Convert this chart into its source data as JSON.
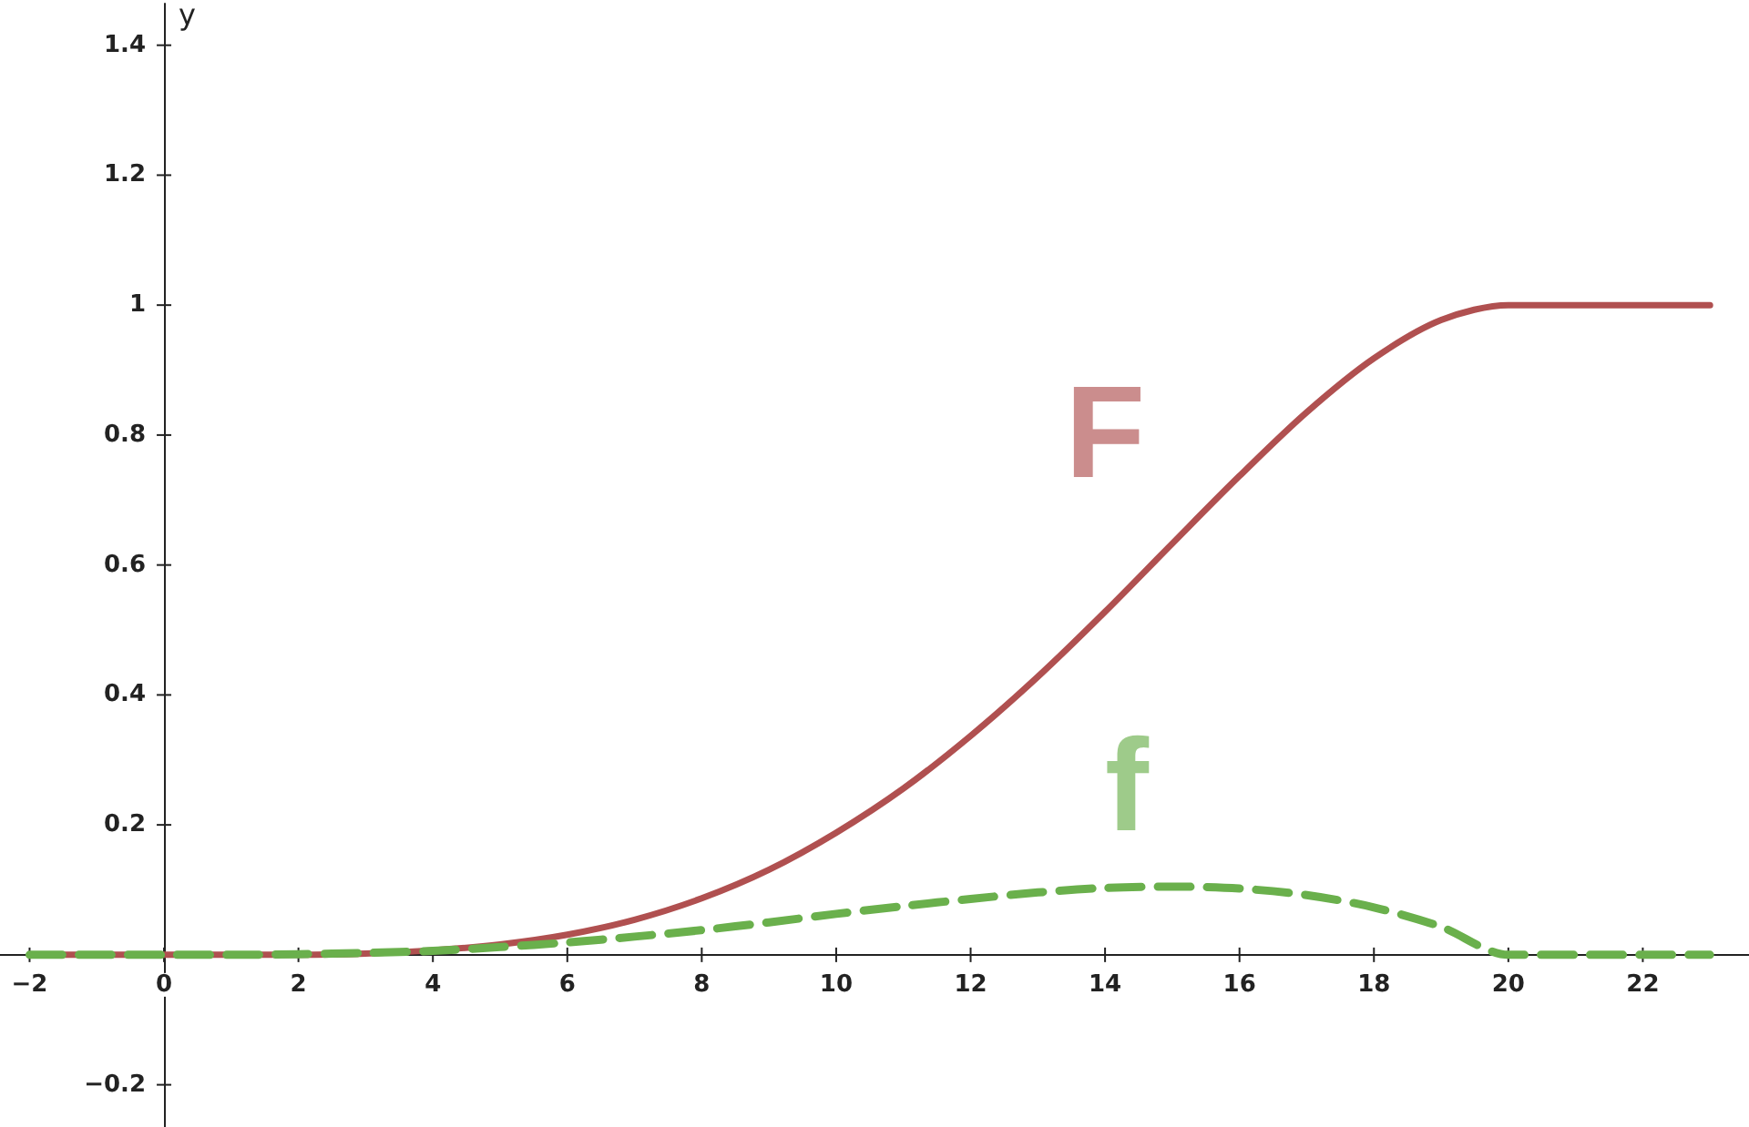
{
  "chart_data": {
    "type": "line",
    "ylabel": "y",
    "x": [
      -2,
      -1,
      0,
      1,
      2,
      3,
      4,
      5,
      6,
      7,
      8,
      9,
      10,
      11,
      12,
      13,
      14,
      15,
      16,
      17,
      18,
      19,
      20,
      21,
      22,
      23
    ],
    "series": [
      {
        "name": "F",
        "color": "#b05050",
        "line_style": "solid",
        "values": [
          0,
          0,
          0,
          0,
          0,
          0.002,
          0.007,
          0.016,
          0.031,
          0.054,
          0.087,
          0.131,
          0.188,
          0.256,
          0.337,
          0.428,
          0.528,
          0.633,
          0.737,
          0.835,
          0.918,
          0.977,
          1,
          1,
          1,
          1
        ]
      },
      {
        "name": "f",
        "color": "#6ab04c",
        "line_style": "dashed",
        "values": [
          0,
          0,
          0,
          0,
          0.001,
          0.003,
          0.006,
          0.012,
          0.019,
          0.028,
          0.038,
          0.05,
          0.063,
          0.075,
          0.086,
          0.096,
          0.103,
          0.105,
          0.102,
          0.092,
          0.073,
          0.043,
          0,
          0,
          0,
          0
        ]
      }
    ],
    "xlim": [
      -2.44,
      23.58
    ],
    "ylim": [
      -0.265,
      1.464
    ],
    "xticks": [
      -2,
      0,
      2,
      4,
      6,
      8,
      10,
      12,
      14,
      16,
      18,
      20,
      22
    ],
    "yticks": [
      -0.2,
      0.2,
      0.4,
      0.6,
      0.8,
      1,
      1.2,
      1.4
    ],
    "grid": false,
    "legend": false,
    "marker": "none"
  }
}
